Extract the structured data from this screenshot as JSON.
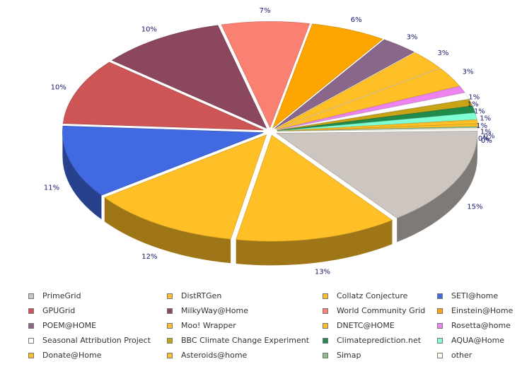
{
  "chart_data": {
    "type": "pie",
    "title": "",
    "slices": [
      {
        "name": "PrimeGrid",
        "label": "15%",
        "value": 15,
        "color": "#cdc5bf"
      },
      {
        "name": "DistRTGen",
        "label": "13%",
        "value": 13,
        "color": "#ffbf27"
      },
      {
        "name": "Collatz Conjecture",
        "label": "12%",
        "value": 12,
        "color": "#ffbf27"
      },
      {
        "name": "SETI@home",
        "label": "11%",
        "value": 11,
        "color": "#4169e1"
      },
      {
        "name": "GPUGrid",
        "label": "10%",
        "value": 10,
        "color": "#cd5555"
      },
      {
        "name": "MilkyWay@Home",
        "label": "10%",
        "value": 10,
        "color": "#8b475d"
      },
      {
        "name": "World Community Grid",
        "label": "7%",
        "value": 7,
        "color": "#fa8072"
      },
      {
        "name": "Einstein@Home",
        "label": "6%",
        "value": 6,
        "color": "#ffa500"
      },
      {
        "name": "POEM@HOME",
        "label": "3%",
        "value": 3,
        "color": "#8b668b"
      },
      {
        "name": "Moo! Wrapper",
        "label": "3%",
        "value": 3,
        "color": "#ffbf27"
      },
      {
        "name": "DNETC@HOME",
        "label": "3%",
        "value": 3,
        "color": "#ffbf27"
      },
      {
        "name": "Rosetta@home",
        "label": "1%",
        "value": 1,
        "color": "#ee82ee"
      },
      {
        "name": "Seasonal Attribution Project",
        "label": "1%",
        "value": 1,
        "color": "#ffffff"
      },
      {
        "name": "BBC Climate Change Experiment",
        "label": "1%",
        "value": 1,
        "color": "#c9a316"
      },
      {
        "name": "Climateprediction.net",
        "label": "1%",
        "value": 1,
        "color": "#218b4b"
      },
      {
        "name": "AQUA@Home",
        "label": "1%",
        "value": 1,
        "color": "#7fffd4"
      },
      {
        "name": "Donate@Home",
        "label": "1%",
        "value": 0.6,
        "color": "#ffbf27"
      },
      {
        "name": "Asteroids@home",
        "label": "0%",
        "value": 0.4,
        "color": "#ffbf27"
      },
      {
        "name": "Simap",
        "label": "0%",
        "value": 0.2,
        "color": "#8fbc8f"
      },
      {
        "name": "other",
        "label": "0%",
        "value": 0.2,
        "color": "#fffff0"
      }
    ],
    "legend": "bottom"
  }
}
